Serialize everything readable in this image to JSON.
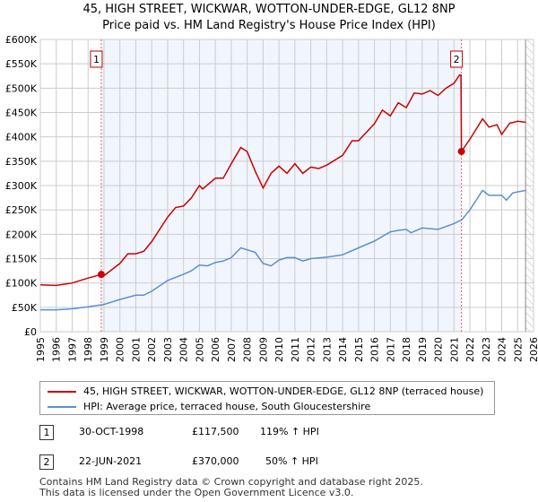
{
  "title_line1": "45, HIGH STREET, WICKWAR, WOTTON-UNDER-EDGE, GL12 8NP",
  "title_line2": "Price paid vs. HM Land Registry's House Price Index (HPI)",
  "chart_data": {
    "type": "line",
    "xlim": [
      1995,
      2026
    ],
    "ylim": [
      0,
      600000
    ],
    "x_ticks": [
      "1995",
      "1996",
      "1997",
      "1998",
      "1999",
      "2000",
      "2001",
      "2002",
      "2003",
      "2004",
      "2005",
      "2006",
      "2007",
      "2008",
      "2009",
      "2010",
      "2011",
      "2012",
      "2013",
      "2014",
      "2015",
      "2016",
      "2017",
      "2018",
      "2019",
      "2020",
      "2021",
      "2022",
      "2023",
      "2024",
      "2025",
      "2026"
    ],
    "y_ticks": [
      {
        "v": 0,
        "label": "£0"
      },
      {
        "v": 50000,
        "label": "£50K"
      },
      {
        "v": 100000,
        "label": "£100K"
      },
      {
        "v": 150000,
        "label": "£150K"
      },
      {
        "v": 200000,
        "label": "£200K"
      },
      {
        "v": 250000,
        "label": "£250K"
      },
      {
        "v": 300000,
        "label": "£300K"
      },
      {
        "v": 350000,
        "label": "£350K"
      },
      {
        "v": 400000,
        "label": "£400K"
      },
      {
        "v": 450000,
        "label": "£450K"
      },
      {
        "v": 500000,
        "label": "£500K"
      },
      {
        "v": 550000,
        "label": "£550K"
      },
      {
        "v": 600000,
        "label": "£600K"
      }
    ],
    "grid": true,
    "shaded_range": [
      1998.83,
      2021.47
    ],
    "future_hatch_from": 2025.5,
    "series": [
      {
        "name": "45, HIGH STREET, WICKWAR, WOTTON-UNDER-EDGE, GL12 8NP (terraced house)",
        "color": "#cc0000",
        "x": [
          1995,
          1996,
          1997,
          1998,
          1998.83,
          1999,
          2000,
          2000.5,
          2001,
          2001.5,
          2002,
          2003,
          2003.5,
          2004,
          2004.5,
          2005,
          2005.2,
          2006,
          2006.5,
          2007,
          2007.6,
          2008,
          2008.5,
          2009,
          2009.5,
          2010,
          2010.5,
          2011,
          2011.5,
          2012,
          2012.5,
          2013,
          2014,
          2014.6,
          2015,
          2016,
          2016.5,
          2017,
          2017.5,
          2018,
          2018.5,
          2019,
          2019.5,
          2020,
          2020.5,
          2021,
          2021.35,
          2021.44,
          2021.47,
          2022,
          2022.8,
          2023.2,
          2023.7,
          2024,
          2024.5,
          2025,
          2025.5
        ],
        "y": [
          96000,
          95000,
          100000,
          110000,
          117500,
          115000,
          140000,
          160000,
          160000,
          165000,
          185000,
          235000,
          255000,
          258000,
          275000,
          300000,
          293000,
          315000,
          315000,
          345000,
          378000,
          370000,
          330000,
          295000,
          325000,
          340000,
          325000,
          345000,
          325000,
          338000,
          335000,
          342000,
          362000,
          392000,
          392000,
          427000,
          455000,
          443000,
          470000,
          460000,
          490000,
          488000,
          495000,
          485000,
          500000,
          510000,
          527000,
          527000,
          370000,
          395000,
          437000,
          420000,
          425000,
          405000,
          428000,
          432000,
          430000
        ]
      },
      {
        "name": "HPI: Average price, terraced house, South Gloucestershire",
        "color": "#5b8fd4",
        "x": [
          1995,
          1996,
          1997,
          1998,
          1999,
          2000,
          2001,
          2001.5,
          2002,
          2003,
          2004,
          2004.5,
          2005,
          2005.5,
          2006,
          2006.5,
          2007,
          2007.6,
          2008,
          2008.5,
          2009,
          2009.5,
          2010,
          2010.5,
          2011,
          2011.5,
          2012,
          2013,
          2014,
          2015,
          2016,
          2017,
          2017.5,
          2018,
          2018.3,
          2019,
          2020,
          2021,
          2021.5,
          2022,
          2022.8,
          2023.2,
          2024,
          2024.3,
          2024.7,
          2025.5
        ],
        "y": [
          45000,
          45000,
          47000,
          51000,
          56000,
          66000,
          75000,
          75000,
          83000,
          105000,
          118000,
          125000,
          137000,
          135000,
          142000,
          145000,
          152000,
          172000,
          168000,
          163000,
          140000,
          135000,
          147000,
          152000,
          152000,
          145000,
          150000,
          153000,
          158000,
          172000,
          186000,
          205000,
          208000,
          210000,
          203000,
          213000,
          210000,
          222000,
          230000,
          250000,
          290000,
          280000,
          280000,
          270000,
          285000,
          290000
        ]
      }
    ],
    "sales": [
      {
        "label": "1",
        "x": 1998.83,
        "y": 117500
      },
      {
        "label": "2",
        "x": 2021.47,
        "y": 370000
      }
    ]
  },
  "legend": {
    "red": "45, HIGH STREET, WICKWAR, WOTTON-UNDER-EDGE, GL12 8NP (terraced house)",
    "blue": "HPI: Average price, terraced house, South Gloucestershire"
  },
  "transactions": [
    {
      "num": "1",
      "date": "30-OCT-1998",
      "price": "£117,500",
      "hpi": "119% ↑ HPI"
    },
    {
      "num": "2",
      "date": "22-JUN-2021",
      "price": "£370,000",
      "hpi": "50% ↑ HPI"
    }
  ],
  "footer1": "Contains HM Land Registry data © Crown copyright and database right 2025.",
  "footer2": "This data is licensed under the Open Government Licence v3.0."
}
